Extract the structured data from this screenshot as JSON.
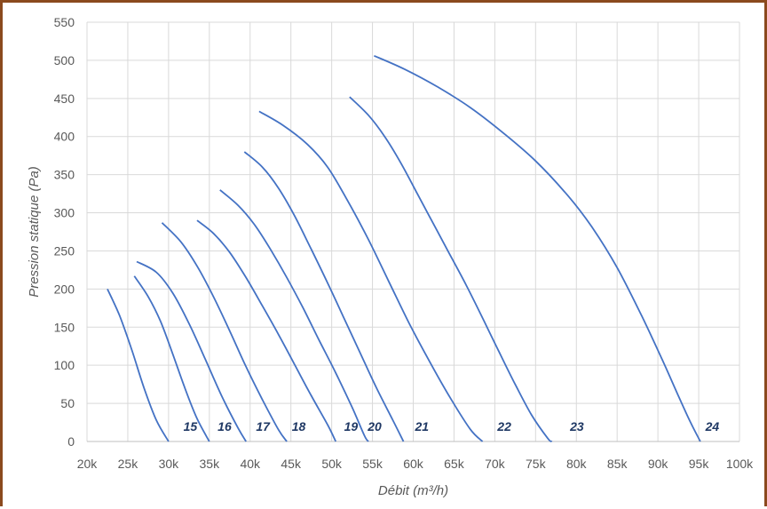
{
  "chart_data": {
    "type": "line",
    "title": "",
    "xlabel": "Débit (m³/h)",
    "ylabel": "Pression statique (Pa)",
    "xlim": [
      20000,
      100000
    ],
    "ylim": [
      0,
      550
    ],
    "x_ticks": [
      20000,
      25000,
      30000,
      35000,
      40000,
      45000,
      50000,
      55000,
      60000,
      65000,
      70000,
      75000,
      80000,
      85000,
      90000,
      95000,
      100000
    ],
    "x_tick_labels": [
      "20k",
      "25k",
      "30k",
      "35k",
      "40k",
      "45k",
      "50k",
      "55k",
      "60k",
      "65k",
      "70k",
      "75k",
      "80k",
      "85k",
      "90k",
      "95k",
      "100k"
    ],
    "y_ticks": [
      0,
      50,
      100,
      150,
      200,
      250,
      300,
      350,
      400,
      450,
      500,
      550
    ],
    "y_tick_labels": [
      "0",
      "50",
      "100",
      "150",
      "200",
      "250",
      "300",
      "350",
      "400",
      "450",
      "500",
      "550"
    ],
    "grid": true,
    "line_color": "#4472C4",
    "label_color": "#1F3864",
    "frame_color": "#8B4A1E",
    "series": [
      {
        "name": "15",
        "label_x": 31600,
        "points": [
          [
            22500,
            200
          ],
          [
            24000,
            165
          ],
          [
            25500,
            120
          ],
          [
            27000,
            70
          ],
          [
            28500,
            28
          ],
          [
            30000,
            0
          ]
        ]
      },
      {
        "name": "16",
        "label_x": 35800,
        "points": [
          [
            25800,
            217
          ],
          [
            27500,
            190
          ],
          [
            29000,
            158
          ],
          [
            30500,
            115
          ],
          [
            32000,
            70
          ],
          [
            33500,
            30
          ],
          [
            35000,
            0
          ]
        ]
      },
      {
        "name": "17",
        "label_x": 40500,
        "points": [
          [
            26100,
            236
          ],
          [
            28500,
            222
          ],
          [
            30500,
            195
          ],
          [
            32500,
            155
          ],
          [
            34500,
            108
          ],
          [
            36500,
            60
          ],
          [
            38500,
            18
          ],
          [
            39500,
            0
          ]
        ]
      },
      {
        "name": "18",
        "label_x": 44900,
        "points": [
          [
            29200,
            287
          ],
          [
            31500,
            262
          ],
          [
            33500,
            230
          ],
          [
            35500,
            190
          ],
          [
            37500,
            145
          ],
          [
            39500,
            98
          ],
          [
            41500,
            55
          ],
          [
            43500,
            15
          ],
          [
            44500,
            0
          ]
        ]
      },
      {
        "name": "19",
        "label_x": 51300,
        "points": [
          [
            33500,
            290
          ],
          [
            35500,
            273
          ],
          [
            37500,
            248
          ],
          [
            39500,
            215
          ],
          [
            41500,
            178
          ],
          [
            43500,
            140
          ],
          [
            45500,
            100
          ],
          [
            47500,
            60
          ],
          [
            49500,
            22
          ],
          [
            50500,
            0
          ]
        ]
      },
      {
        "name": "20",
        "label_x": 54200,
        "points": [
          [
            36300,
            330
          ],
          [
            38500,
            310
          ],
          [
            40500,
            285
          ],
          [
            42500,
            252
          ],
          [
            44500,
            215
          ],
          [
            46500,
            175
          ],
          [
            48500,
            132
          ],
          [
            50500,
            90
          ],
          [
            52500,
            45
          ],
          [
            54000,
            8
          ],
          [
            54500,
            0
          ]
        ]
      },
      {
        "name": "21",
        "label_x": 60000,
        "points": [
          [
            39300,
            380
          ],
          [
            41500,
            360
          ],
          [
            43500,
            332
          ],
          [
            45500,
            295
          ],
          [
            47500,
            252
          ],
          [
            49500,
            208
          ],
          [
            51500,
            162
          ],
          [
            53500,
            116
          ],
          [
            55500,
            70
          ],
          [
            57500,
            28
          ],
          [
            58800,
            0
          ]
        ]
      },
      {
        "name": "22",
        "label_x": 70100,
        "points": [
          [
            41100,
            433
          ],
          [
            44000,
            415
          ],
          [
            47000,
            390
          ],
          [
            49500,
            360
          ],
          [
            52000,
            315
          ],
          [
            54500,
            265
          ],
          [
            57000,
            210
          ],
          [
            59500,
            155
          ],
          [
            62000,
            105
          ],
          [
            64500,
            58
          ],
          [
            67000,
            16
          ],
          [
            68500,
            0
          ]
        ]
      },
      {
        "name": "23",
        "label_x": 79000,
        "points": [
          [
            52200,
            452
          ],
          [
            54500,
            428
          ],
          [
            56500,
            400
          ],
          [
            58500,
            365
          ],
          [
            60500,
            325
          ],
          [
            62500,
            285
          ],
          [
            64500,
            245
          ],
          [
            66500,
            205
          ],
          [
            68500,
            162
          ],
          [
            70500,
            118
          ],
          [
            72500,
            75
          ],
          [
            74500,
            35
          ],
          [
            76500,
            4
          ],
          [
            77000,
            0
          ]
        ]
      },
      {
        "name": "24",
        "label_x": 95600,
        "points": [
          [
            55200,
            506
          ],
          [
            59000,
            488
          ],
          [
            63000,
            465
          ],
          [
            67000,
            438
          ],
          [
            71000,
            405
          ],
          [
            75000,
            368
          ],
          [
            79000,
            322
          ],
          [
            82000,
            280
          ],
          [
            85000,
            228
          ],
          [
            88000,
            165
          ],
          [
            90500,
            108
          ],
          [
            92500,
            60
          ],
          [
            94000,
            25
          ],
          [
            95200,
            0
          ]
        ]
      }
    ]
  }
}
